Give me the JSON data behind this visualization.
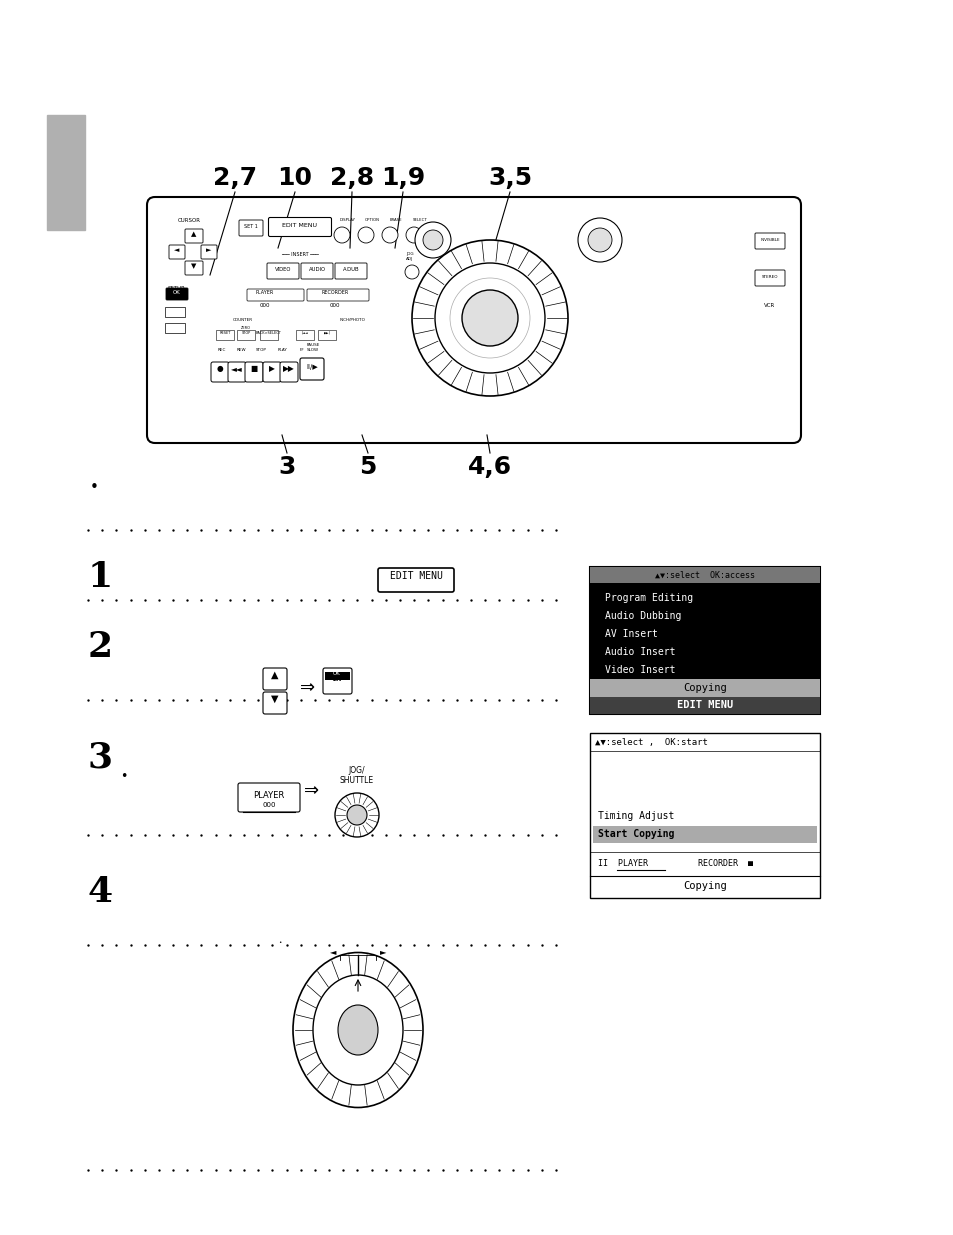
{
  "bg_color": "#ffffff",
  "gray_bar_color": "#b0b0b0",
  "black_color": "#000000",
  "dot_color": "#000000",
  "header_numbers": [
    "2,7",
    "10",
    "2,8",
    "1,9",
    "3,5"
  ],
  "bottom_numbers": [
    "3",
    "5",
    "4,6"
  ],
  "step1_label": "1",
  "step2_label": "2",
  "step3_label": "3",
  "step4_label": "4",
  "screen1_title": "EDIT MENU",
  "screen1_items": [
    "Copying",
    "Video Insert",
    "Audio Insert",
    "AV Insert",
    "Audio Dubbing",
    "Program Editing"
  ],
  "screen1_footer": "▲▼:select  OK:access",
  "screen2_title": "Copying",
  "screen2_player": "II  PLAYER         RECORDER  ■",
  "screen2_line2": "Start Copying",
  "screen2_line3": "Timing Adjust",
  "screen2_footer": "▲▼:select ,  OK:start",
  "bullet": "•",
  "arrow": "⇒"
}
